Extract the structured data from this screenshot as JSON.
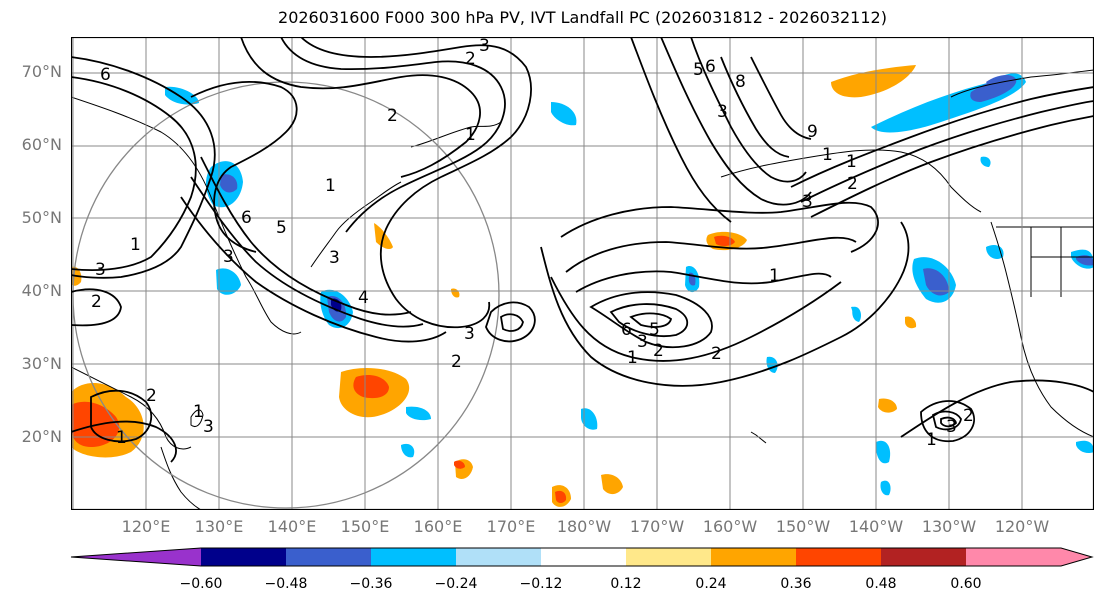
{
  "title": "2026031600 F000 300 hPa PV, IVT Landfall PC (2026031812 - 2026032112)",
  "map": {
    "lat_labels": [
      "70°N",
      "60°N",
      "50°N",
      "40°N",
      "30°N",
      "20°N"
    ],
    "lon_labels": [
      "120°E",
      "130°E",
      "140°E",
      "150°E",
      "160°E",
      "170°E",
      "180°W",
      "170°W",
      "160°W",
      "150°W",
      "140°W",
      "130°W",
      "120°W"
    ],
    "contour_labels": [
      "3",
      "2",
      "6",
      "2",
      "1",
      "2",
      "3",
      "5",
      "6",
      "3",
      "1",
      "4",
      "3",
      "2",
      "2",
      "1",
      "3",
      "1",
      "5",
      "6",
      "3",
      "2",
      "1",
      "5",
      "3",
      "6",
      "8",
      "9",
      "1",
      "1",
      "2",
      "3",
      "1",
      "2",
      "3",
      "2",
      "1",
      "1",
      "3"
    ],
    "colors": {
      "grid": "#888888",
      "contour": "#000000",
      "coast": "#000000",
      "label": "#777777"
    }
  },
  "colorbar": {
    "ticks": [
      "−0.60",
      "−0.48",
      "−0.36",
      "−0.24",
      "−0.12",
      "0.12",
      "0.24",
      "0.36",
      "0.48",
      "0.60"
    ],
    "colors": [
      "#9932cc",
      "#00008b",
      "#3a5fcd",
      "#00bfff",
      "#b0e0f8",
      "#ffffff",
      "#ffe88a",
      "#ffa500",
      "#ff4500",
      "#b22222",
      "#ff88aa"
    ]
  }
}
